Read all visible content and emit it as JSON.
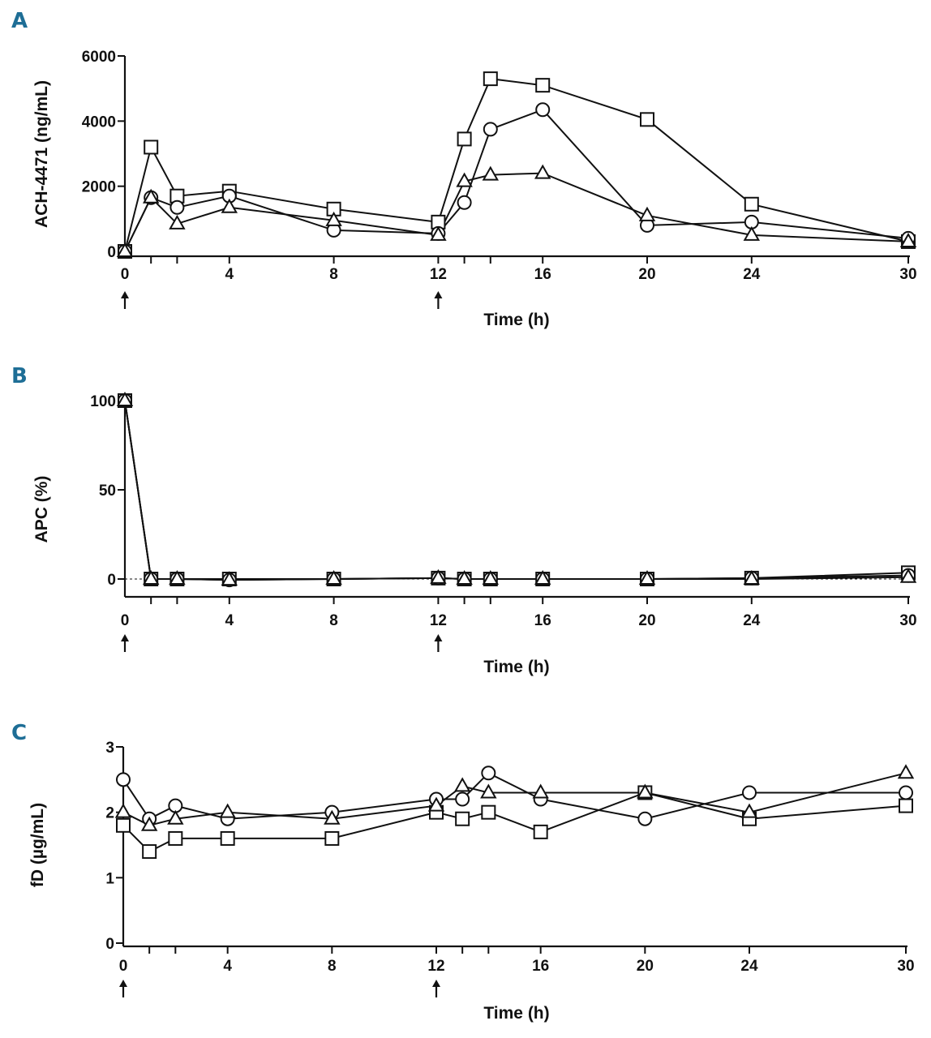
{
  "chart_data": [
    {
      "panel": "A",
      "type": "line",
      "title": "",
      "ylabel": "ACH-4471 (ng/mL)",
      "xlabel": "Time (h)",
      "ylim": [
        0,
        6000
      ],
      "yticks": [
        0,
        2000,
        4000,
        6000
      ],
      "ytick_labels": [
        "0",
        "2000",
        "4000",
        "6000"
      ],
      "xlim": [
        0,
        30
      ],
      "xticks": [
        0,
        4,
        8,
        12,
        16,
        20,
        24,
        30
      ],
      "xtick_labels": [
        "0",
        "4",
        "8",
        "12",
        "16",
        "20",
        "24",
        "30"
      ],
      "dose_arrows_at": [
        0,
        12
      ],
      "series": [
        {
          "name": "Square",
          "marker": "square",
          "x": [
            0,
            1,
            2,
            4,
            8,
            12,
            13,
            14,
            16,
            20,
            24,
            30
          ],
          "y": [
            0,
            3200,
            1700,
            1850,
            1300,
            900,
            3450,
            5300,
            5100,
            4050,
            1450,
            300
          ]
        },
        {
          "name": "Circle",
          "marker": "circle",
          "x": [
            0,
            1,
            2,
            4,
            8,
            12,
            13,
            14,
            16,
            20,
            24,
            30
          ],
          "y": [
            0,
            1650,
            1350,
            1700,
            650,
            550,
            1500,
            3750,
            4350,
            800,
            900,
            400
          ]
        },
        {
          "name": "Triangle",
          "marker": "triangle",
          "x": [
            0,
            1,
            2,
            4,
            8,
            12,
            13,
            14,
            16,
            20,
            24,
            30
          ],
          "y": [
            0,
            1650,
            850,
            1350,
            950,
            500,
            2150,
            2350,
            2400,
            1100,
            500,
            300
          ]
        }
      ]
    },
    {
      "panel": "B",
      "type": "line",
      "title": "",
      "ylabel": "APC (%)",
      "xlabel": "Time (h)",
      "ylim": [
        -5,
        100
      ],
      "yticks": [
        0,
        50,
        100
      ],
      "ytick_labels": [
        "0",
        "50",
        "100"
      ],
      "xlim": [
        0,
        30
      ],
      "xticks": [
        0,
        4,
        8,
        12,
        16,
        20,
        24,
        30
      ],
      "xtick_labels": [
        "0",
        "4",
        "8",
        "12",
        "16",
        "20",
        "24",
        "30"
      ],
      "dose_arrows_at": [
        0,
        12
      ],
      "reference_line": 0,
      "series": [
        {
          "name": "Square",
          "marker": "square",
          "x": [
            0,
            1,
            2,
            4,
            8,
            12,
            13,
            14,
            16,
            20,
            24,
            30
          ],
          "y": [
            100,
            0,
            0,
            0,
            0,
            0.5,
            0,
            0,
            0,
            0,
            0.5,
            3.5
          ]
        },
        {
          "name": "Circle",
          "marker": "circle",
          "x": [
            0,
            1,
            2,
            4,
            8,
            12,
            13,
            14,
            16,
            20,
            24,
            30
          ],
          "y": [
            100,
            0,
            0,
            -0.5,
            0,
            0.5,
            0,
            0,
            0,
            0,
            0.5,
            2
          ]
        },
        {
          "name": "Triangle",
          "marker": "triangle",
          "x": [
            0,
            1,
            2,
            4,
            8,
            12,
            13,
            14,
            16,
            20,
            24,
            30
          ],
          "y": [
            100,
            0,
            0,
            -0.5,
            0,
            0.5,
            0,
            0,
            0,
            0,
            0,
            1
          ]
        }
      ]
    },
    {
      "panel": "C",
      "type": "line",
      "title": "",
      "ylabel": "fD (µg/mL)",
      "xlabel": "Time (h)",
      "ylim": [
        0,
        3
      ],
      "yticks": [
        0,
        1,
        2,
        3
      ],
      "ytick_labels": [
        "0",
        "1",
        "2",
        "3"
      ],
      "xlim": [
        0,
        30
      ],
      "xticks": [
        0,
        4,
        8,
        12,
        16,
        20,
        24,
        30
      ],
      "xtick_labels": [
        "0",
        "4",
        "8",
        "12",
        "16",
        "20",
        "24",
        "30"
      ],
      "dose_arrows_at": [
        0,
        12
      ],
      "series": [
        {
          "name": "Square",
          "marker": "square",
          "x": [
            0,
            1,
            2,
            4,
            8,
            12,
            13,
            14,
            16,
            20,
            24,
            30
          ],
          "y": [
            1.8,
            1.4,
            1.6,
            1.6,
            1.6,
            2.0,
            1.9,
            2.0,
            1.7,
            2.3,
            1.9,
            2.1
          ]
        },
        {
          "name": "Circle",
          "marker": "circle",
          "x": [
            0,
            1,
            2,
            4,
            8,
            12,
            13,
            14,
            16,
            20,
            24,
            30
          ],
          "y": [
            2.5,
            1.9,
            2.1,
            1.9,
            2.0,
            2.2,
            2.2,
            2.6,
            2.2,
            1.9,
            2.3,
            2.3
          ]
        },
        {
          "name": "Triangle",
          "marker": "triangle",
          "x": [
            0,
            1,
            2,
            4,
            8,
            12,
            13,
            14,
            16,
            20,
            24,
            30
          ],
          "y": [
            2.0,
            1.8,
            1.9,
            2.0,
            1.9,
            2.1,
            2.4,
            2.3,
            2.3,
            2.3,
            2.0,
            2.6
          ]
        }
      ]
    }
  ],
  "colors": {
    "panel_letter": "#1e6e96",
    "ink": "#111111",
    "marker_fill": "#ffffff"
  }
}
